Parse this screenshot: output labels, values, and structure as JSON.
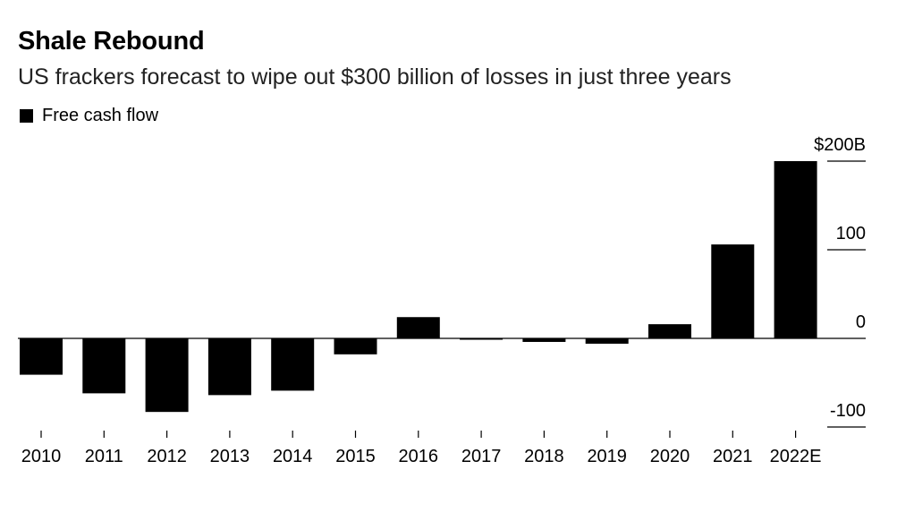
{
  "header": {
    "title": "Shale Rebound",
    "subtitle": "US frackers forecast to wipe out $300 billion of losses in just three years"
  },
  "legend": {
    "label": "Free cash flow",
    "color": "#000000"
  },
  "chart_data": {
    "type": "bar",
    "title": "Shale Rebound",
    "subtitle": "US frackers forecast to wipe out $300 billion of losses in just three years",
    "categories": [
      "2010",
      "2011",
      "2012",
      "2013",
      "2014",
      "2015",
      "2016",
      "2017",
      "2018",
      "2019",
      "2020",
      "2021",
      "2022E"
    ],
    "series": [
      {
        "name": "Free cash flow",
        "color": "#000000",
        "values": [
          -41,
          -62,
          -83,
          -64,
          -59,
          -18,
          24,
          -1,
          -4,
          -6,
          16,
          106,
          200
        ]
      }
    ],
    "ylim": [
      -100,
      200
    ],
    "yticks": [
      -100,
      0,
      100,
      200
    ],
    "ytick_labels": [
      "-100",
      "0",
      "100",
      "$200B"
    ],
    "xlabel": "",
    "ylabel": "",
    "legend_position": "top-left",
    "grid": false
  }
}
